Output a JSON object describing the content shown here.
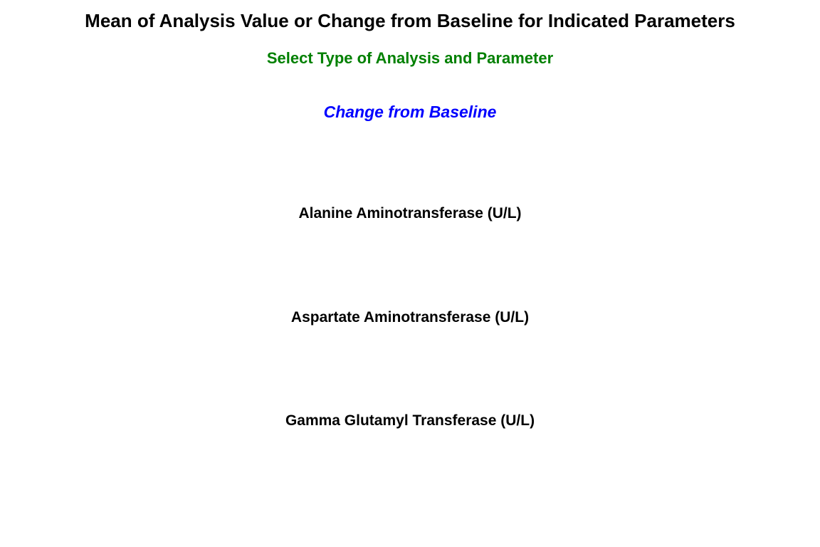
{
  "header": {
    "title": "Mean of Analysis Value or Change from Baseline for Indicated Parameters",
    "subtitle": "Select Type of Analysis and Parameter"
  },
  "analysis": {
    "selected_type": "Change from Baseline"
  },
  "parameters": [
    {
      "label": "Alanine Aminotransferase (U/L)"
    },
    {
      "label": "Aspartate Aminotransferase (U/L)"
    },
    {
      "label": "Gamma Glutamyl Transferase (U/L)"
    }
  ],
  "colors": {
    "title": "#000000",
    "subtitle": "#008000",
    "analysis_link": "#0000ff",
    "parameter_link": "#000000",
    "background": "#ffffff"
  }
}
